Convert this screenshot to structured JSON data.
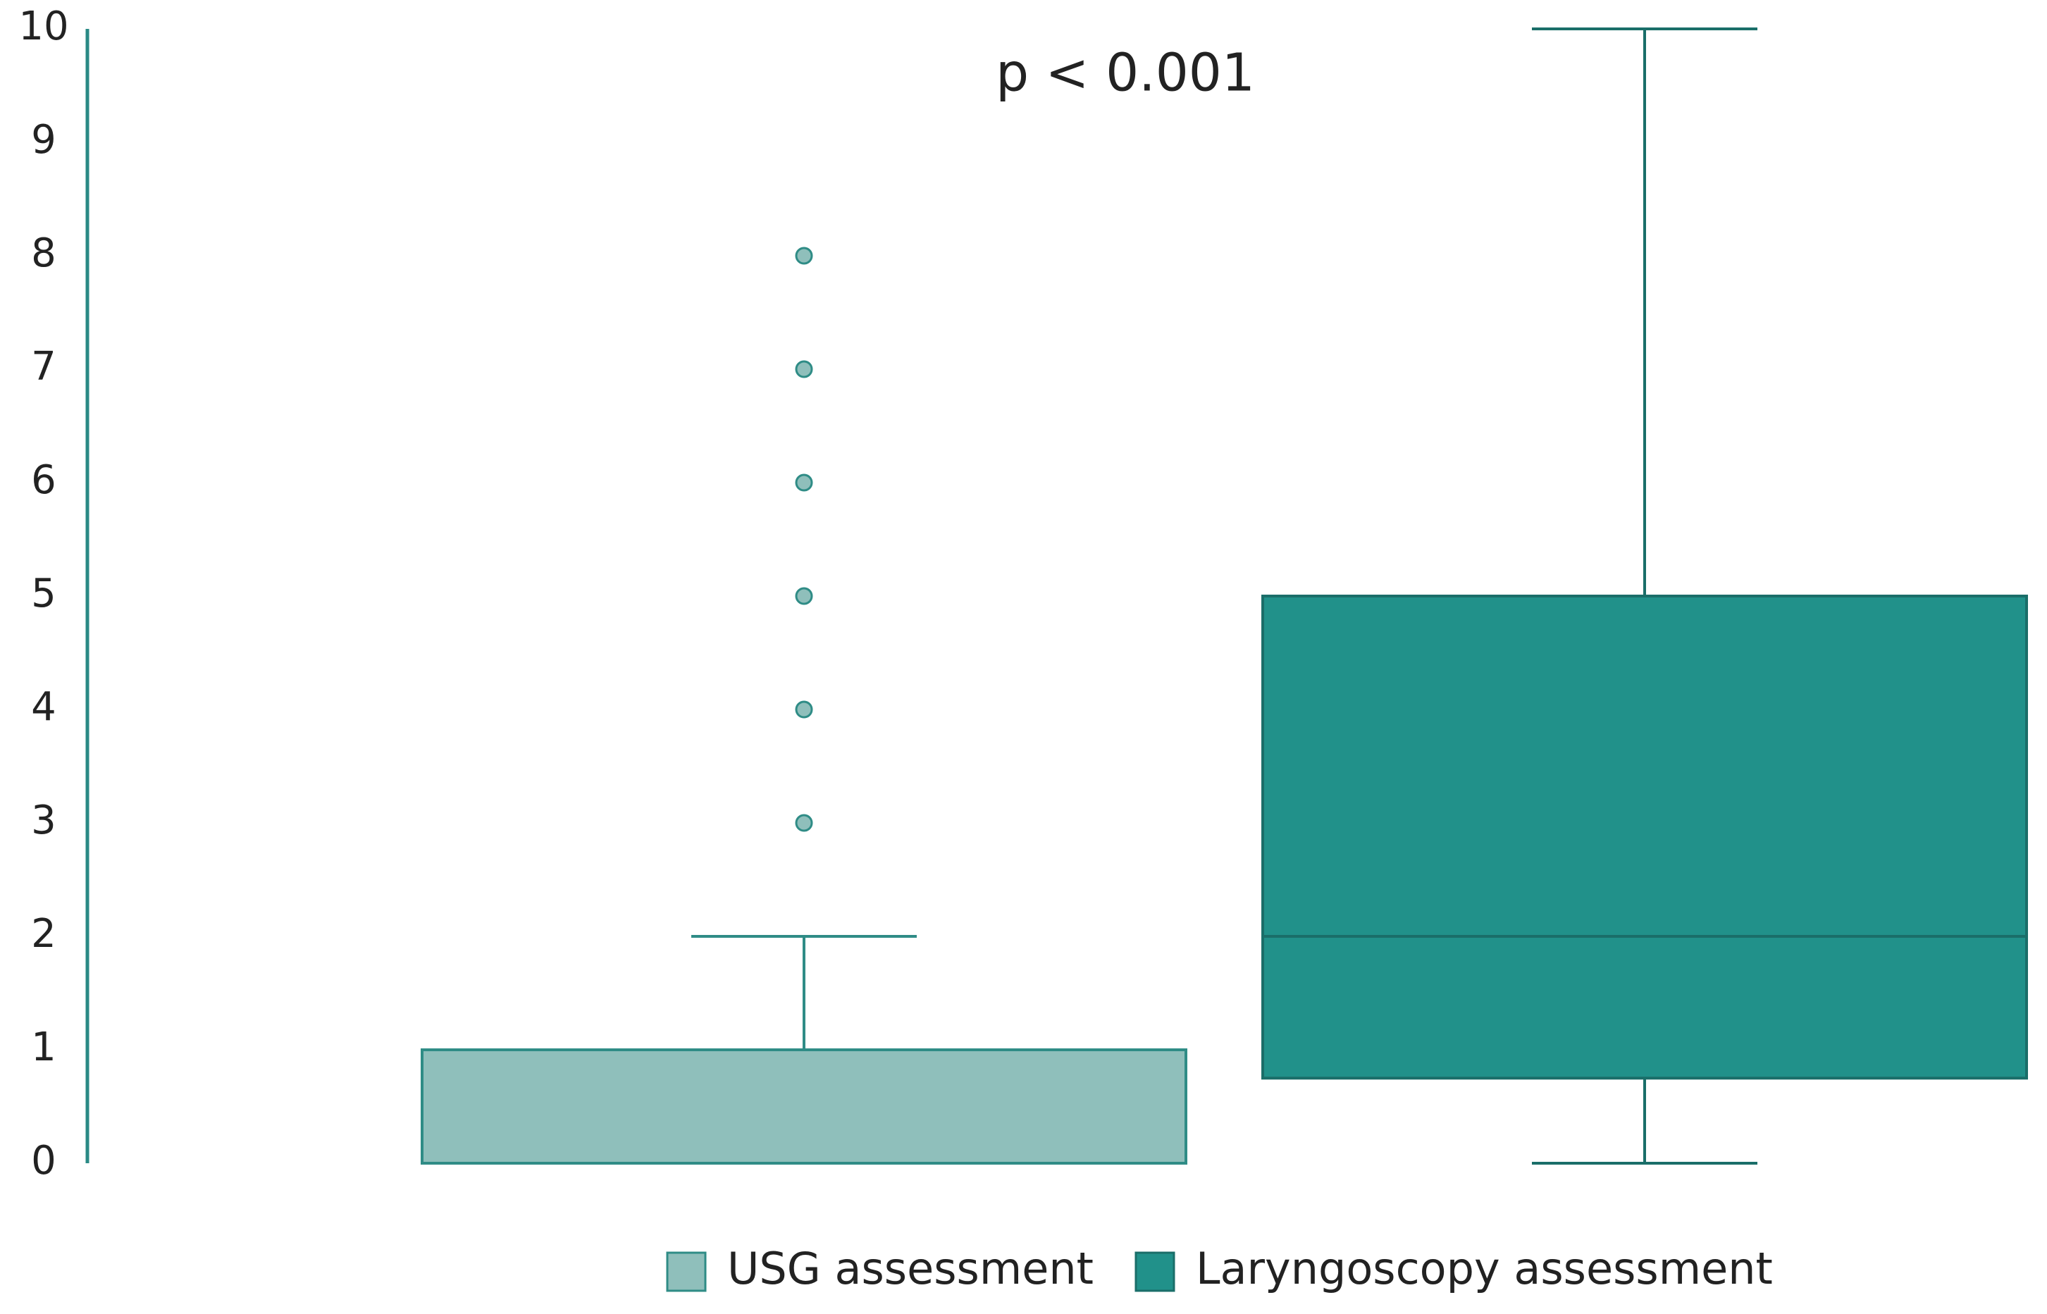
{
  "chart_data": {
    "type": "box",
    "annotation": "p < 0.001",
    "ylim": [
      0,
      10
    ],
    "yticks": [
      0,
      1,
      2,
      3,
      4,
      5,
      6,
      7,
      8,
      9,
      10
    ],
    "grid": false,
    "legend": "bottom",
    "series": [
      {
        "name": "USG assessment",
        "color": "#8fbfbb",
        "edge": "#2f8c86",
        "min": 0,
        "q1": 0,
        "median": 0,
        "q3": 1,
        "max": 2,
        "outliers": [
          3,
          4,
          5,
          6,
          7,
          8
        ]
      },
      {
        "name": "Laryngoscopy assessment",
        "color": "#21918a",
        "edge": "#1a6e69",
        "min": 0,
        "q1": 0.75,
        "median": 2,
        "q3": 5,
        "max": 10,
        "outliers": []
      }
    ]
  }
}
